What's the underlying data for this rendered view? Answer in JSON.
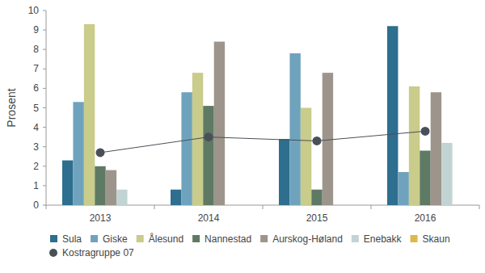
{
  "chart_data": {
    "type": "bar",
    "y_label": "Prosent",
    "categories": [
      "2013",
      "2014",
      "2015",
      "2016"
    ],
    "ylim": [
      0,
      10
    ],
    "yticks": [
      0,
      1,
      2,
      3,
      4,
      5,
      6,
      7,
      8,
      9,
      10
    ],
    "grid": false,
    "legend": "bottom",
    "series": [
      {
        "name": "Sula",
        "color": "#2e6e8e",
        "values": [
          2.3,
          0.8,
          3.4,
          9.2
        ]
      },
      {
        "name": "Giske",
        "color": "#6fa3bd",
        "values": [
          5.3,
          5.8,
          7.8,
          1.7
        ]
      },
      {
        "name": "Ålesund",
        "color": "#c9cc8a",
        "values": [
          9.3,
          6.8,
          5.0,
          6.1
        ]
      },
      {
        "name": "Nannestad",
        "color": "#5f7a64",
        "values": [
          2.0,
          5.1,
          0.8,
          2.8
        ]
      },
      {
        "name": "Aurskog-Høland",
        "color": "#9d958b",
        "values": [
          1.8,
          8.4,
          6.8,
          5.8
        ]
      },
      {
        "name": "Enebakk",
        "color": "#c2d3d3",
        "values": [
          0.8,
          null,
          null,
          3.2
        ]
      },
      {
        "name": "Skaun",
        "color": "#e0b84a",
        "values": [
          null,
          null,
          null,
          null
        ]
      },
      {
        "name": "Kostragruppe 07",
        "color": "#4a5058",
        "type": "line",
        "marker": "circle",
        "values": [
          2.7,
          3.5,
          3.3,
          3.8
        ]
      }
    ]
  }
}
